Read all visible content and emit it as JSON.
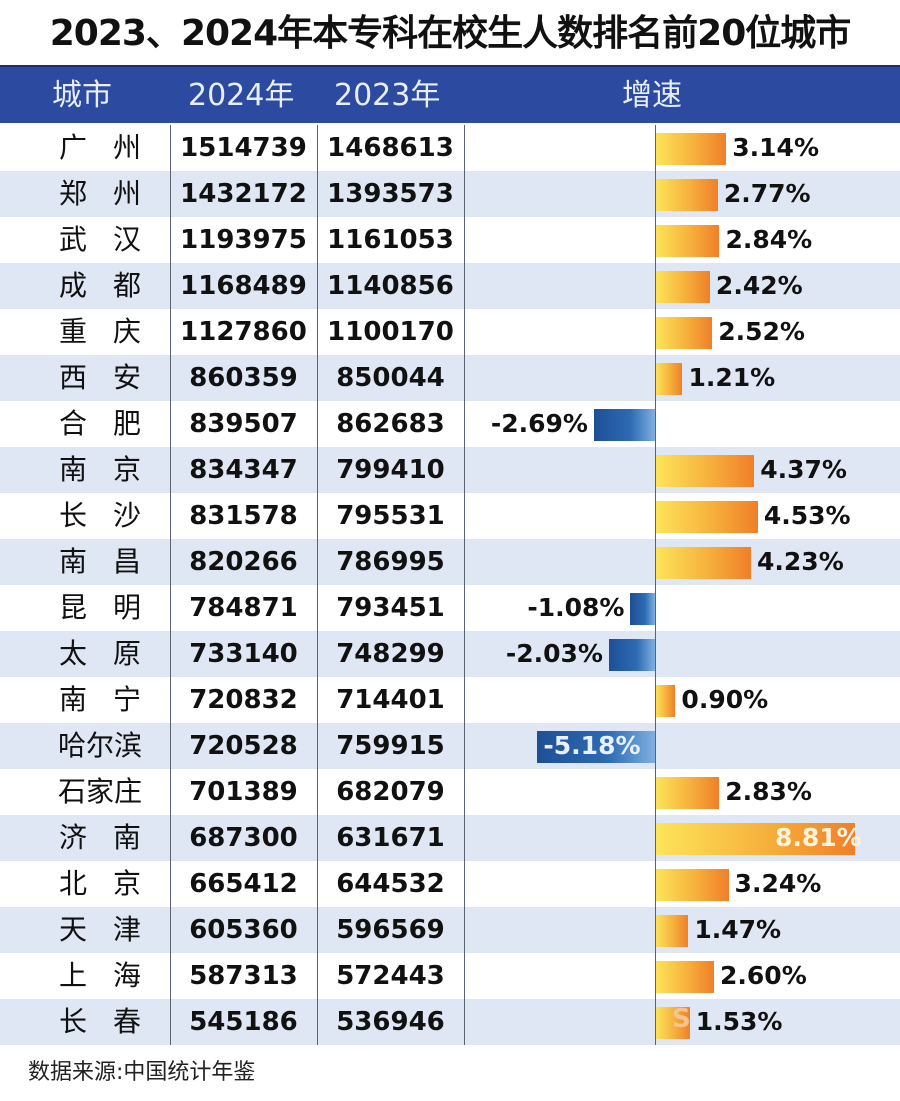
{
  "title": "2023、2024年本专科在校生人数排名前20位城市",
  "header": {
    "city": "城市",
    "y2024": "2024年",
    "y2023": "2023年",
    "rate": "增速"
  },
  "rows": [
    {
      "city": "广州",
      "y2024": "1514739",
      "y2023": "1468613",
      "rate": "3.14%",
      "value": 3.14
    },
    {
      "city": "郑州",
      "y2024": "1432172",
      "y2023": "1393573",
      "rate": "2.77%",
      "value": 2.77
    },
    {
      "city": "武汉",
      "y2024": "1193975",
      "y2023": "1161053",
      "rate": "2.84%",
      "value": 2.84
    },
    {
      "city": "成都",
      "y2024": "1168489",
      "y2023": "1140856",
      "rate": "2.42%",
      "value": 2.42
    },
    {
      "city": "重庆",
      "y2024": "1127860",
      "y2023": "1100170",
      "rate": "2.52%",
      "value": 2.52
    },
    {
      "city": "西安",
      "y2024": "860359",
      "y2023": "850044",
      "rate": "1.21%",
      "value": 1.21
    },
    {
      "city": "合肥",
      "y2024": "839507",
      "y2023": "862683",
      "rate": "-2.69%",
      "value": -2.69
    },
    {
      "city": "南京",
      "y2024": "834347",
      "y2023": "799410",
      "rate": "4.37%",
      "value": 4.37
    },
    {
      "city": "长沙",
      "y2024": "831578",
      "y2023": "795531",
      "rate": "4.53%",
      "value": 4.53
    },
    {
      "city": "南昌",
      "y2024": "820266",
      "y2023": "786995",
      "rate": "4.23%",
      "value": 4.23
    },
    {
      "city": "昆明",
      "y2024": "784871",
      "y2023": "793451",
      "rate": "-1.08%",
      "value": -1.08
    },
    {
      "city": "太原",
      "y2024": "733140",
      "y2023": "748299",
      "rate": "-2.03%",
      "value": -2.03
    },
    {
      "city": "南宁",
      "y2024": "720832",
      "y2023": "714401",
      "rate": "0.90%",
      "value": 0.9
    },
    {
      "city": "哈尔滨",
      "y2024": "720528",
      "y2023": "759915",
      "rate": "-5.18%",
      "value": -5.18
    },
    {
      "city": "石家庄",
      "y2024": "701389",
      "y2023": "682079",
      "rate": "2.83%",
      "value": 2.83
    },
    {
      "city": "济南",
      "y2024": "687300",
      "y2023": "631671",
      "rate": "8.81%",
      "value": 8.81
    },
    {
      "city": "北京",
      "y2024": "665412",
      "y2023": "644532",
      "rate": "3.24%",
      "value": 3.24
    },
    {
      "city": "天津",
      "y2024": "605360",
      "y2023": "596569",
      "rate": "1.47%",
      "value": 1.47
    },
    {
      "city": "上海",
      "y2024": "587313",
      "y2023": "572443",
      "rate": "2.60%",
      "value": 2.6
    },
    {
      "city": "长春",
      "y2024": "545186",
      "y2023": "536946",
      "rate": "1.53%",
      "value": 1.53
    }
  ],
  "footer": "数据来源:中国统计年鉴",
  "colors": {
    "header_bg": "#2b4aa0",
    "row_alt_bg": "#dfe7f4",
    "positive_bar_start": "#fde55a",
    "positive_bar_end": "#ef7f2a",
    "negative_bar_start": "#1e4f95",
    "negative_bar_end": "#7fb0e0"
  },
  "chart_data": {
    "type": "table",
    "title": "2023、2024年本专科在校生人数排名前20位城市",
    "columns": [
      "城市",
      "2024年",
      "2023年",
      "增速"
    ],
    "categories": [
      "广州",
      "郑州",
      "武汉",
      "成都",
      "重庆",
      "西安",
      "合肥",
      "南京",
      "长沙",
      "南昌",
      "昆明",
      "太原",
      "南宁",
      "哈尔滨",
      "石家庄",
      "济南",
      "北京",
      "天津",
      "上海",
      "长春"
    ],
    "series": [
      {
        "name": "2024年",
        "values": [
          1514739,
          1432172,
          1193975,
          1168489,
          1127860,
          860359,
          839507,
          834347,
          831578,
          820266,
          784871,
          733140,
          720832,
          720528,
          701389,
          687300,
          665412,
          605360,
          587313,
          545186
        ]
      },
      {
        "name": "2023年",
        "values": [
          1468613,
          1393573,
          1161053,
          1140856,
          1100170,
          850044,
          862683,
          799410,
          795531,
          786995,
          793451,
          748299,
          714401,
          759915,
          682079,
          631671,
          644532,
          596569,
          572443,
          536946
        ]
      },
      {
        "name": "增速(%)",
        "values": [
          3.14,
          2.77,
          2.84,
          2.42,
          2.52,
          1.21,
          -2.69,
          4.37,
          4.53,
          4.23,
          -1.08,
          -2.03,
          0.9,
          -5.18,
          2.83,
          8.81,
          3.24,
          1.47,
          2.6,
          1.53
        ]
      }
    ],
    "growth_bar_type": "bar",
    "source": "数据来源:中国统计年鉴"
  }
}
